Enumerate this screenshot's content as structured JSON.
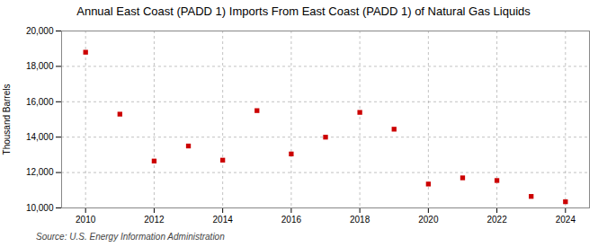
{
  "chart_data": {
    "type": "scatter",
    "title": "Annual East Coast (PADD 1) Imports From East Coast (PADD 1) of Natural Gas Liquids",
    "ylabel": "Thousand Barrels",
    "source": "Source: U.S. Energy Information Administration",
    "x": [
      2010,
      2011,
      2012,
      2013,
      2014,
      2015,
      2016,
      2017,
      2018,
      2019,
      2020,
      2021,
      2022,
      2023,
      2024
    ],
    "values": [
      18800,
      15300,
      12650,
      13500,
      12700,
      15500,
      13050,
      14000,
      15400,
      14450,
      11350,
      11700,
      11550,
      10650,
      10350
    ],
    "color": "#cc0000",
    "marker": "square",
    "xlim": [
      2009.3,
      2024.7
    ],
    "xticks": [
      2010,
      2012,
      2014,
      2016,
      2018,
      2020,
      2022,
      2024
    ],
    "ylim": [
      10000,
      20000
    ],
    "yticks": [
      {
        "value": 10000,
        "label": "10,000"
      },
      {
        "value": 12000,
        "label": "12,000"
      },
      {
        "value": 14000,
        "label": "14,000"
      },
      {
        "value": 16000,
        "label": "16,000"
      },
      {
        "value": 18000,
        "label": "18,000"
      },
      {
        "value": 20000,
        "label": "20,000"
      }
    ],
    "grid": true
  }
}
